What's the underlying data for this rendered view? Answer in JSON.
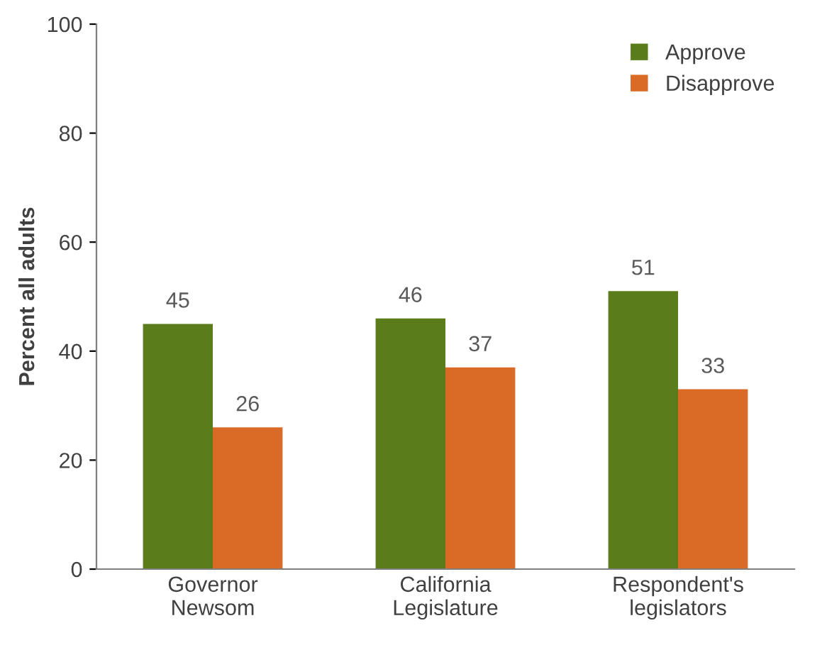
{
  "chart_data": {
    "type": "bar",
    "ylabel": "Percent all adults",
    "categories": [
      "Governor\nNewsom",
      "California\nLegislature",
      "Respondent's\nlegislators"
    ],
    "series": [
      {
        "name": "Approve",
        "color": "#5b7c1b",
        "values": [
          45,
          46,
          51
        ]
      },
      {
        "name": "Disapprove",
        "color": "#d96b27",
        "values": [
          26,
          37,
          33
        ]
      }
    ],
    "ylim": [
      0,
      100
    ],
    "yticks": [
      0,
      20,
      40,
      60,
      80,
      100
    ],
    "grid": false,
    "legend": "top right",
    "data_labels": true
  }
}
